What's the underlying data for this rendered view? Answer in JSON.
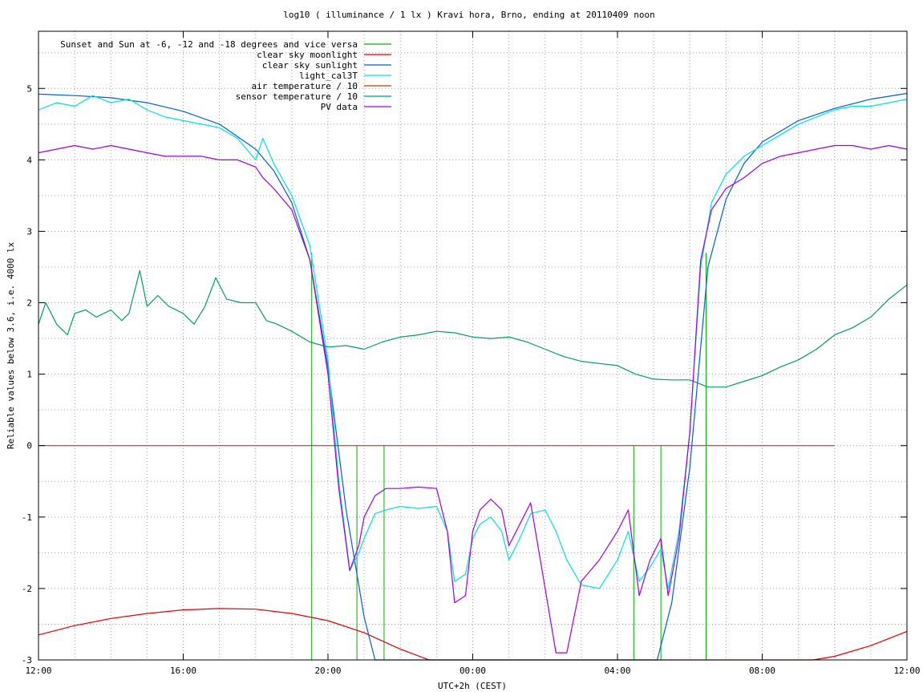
{
  "chart_data": {
    "type": "line",
    "title": "log10 ( illuminance / 1 lx ) Kravi hora, Brno, ending at 20110409 noon",
    "xlabel": "UTC+2h (CEST)",
    "ylabel": "Reliable values below 3.6, i.e. 4000 lx",
    "xlim": [
      0,
      24
    ],
    "ylim": [
      -3,
      5.8
    ],
    "x_ticks": [
      {
        "value": 0,
        "label": "12:00"
      },
      {
        "value": 4,
        "label": "16:00"
      },
      {
        "value": 8,
        "label": "20:00"
      },
      {
        "value": 12,
        "label": "00:00"
      },
      {
        "value": 16,
        "label": "04:00"
      },
      {
        "value": 20,
        "label": "08:00"
      },
      {
        "value": 24,
        "label": "12:00"
      }
    ],
    "y_ticks": [
      {
        "value": -3,
        "label": "-3"
      },
      {
        "value": -2,
        "label": "-2"
      },
      {
        "value": -1,
        "label": "-1"
      },
      {
        "value": 0,
        "label": "0"
      },
      {
        "value": 1,
        "label": "1"
      },
      {
        "value": 2,
        "label": "2"
      },
      {
        "value": 3,
        "label": "3"
      },
      {
        "value": 4,
        "label": "4"
      },
      {
        "value": 5,
        "label": "5"
      }
    ],
    "grid": true,
    "legend_position": "top-left",
    "series": [
      {
        "name": "Sunset and Sun at -6, -12 and -18 degrees and vice versa",
        "color": "#00b000",
        "style": "vlines",
        "x": [
          7.55,
          8.8,
          9.55,
          16.45,
          17.2,
          18.45
        ],
        "y_top": [
          2.7,
          0,
          0,
          0,
          0,
          2.7
        ]
      },
      {
        "name": "clear sky moonlight",
        "color": "#e00000",
        "x": [
          0,
          1,
          2,
          3,
          4,
          5,
          6,
          7,
          8,
          9,
          10,
          10.8,
          21.4,
          22,
          23,
          24
        ],
        "y": [
          -2.65,
          -2.52,
          -2.42,
          -2.35,
          -2.3,
          -2.28,
          -2.29,
          -2.35,
          -2.45,
          -2.62,
          -2.85,
          -3.0,
          -3.0,
          -2.95,
          -2.8,
          -2.6
        ]
      },
      {
        "name": "clear sky sunlight",
        "color": "#0060d0",
        "x": [
          0,
          1,
          2,
          3,
          4,
          5,
          6,
          6.5,
          7,
          7.5,
          8,
          8.5,
          9,
          9.3,
          17.1,
          17.5,
          18,
          18.5,
          19,
          19.5,
          20,
          21,
          22,
          23,
          24
        ],
        "y": [
          4.92,
          4.9,
          4.87,
          4.8,
          4.68,
          4.5,
          4.15,
          3.85,
          3.4,
          2.6,
          1.1,
          -0.9,
          -2.4,
          -3.0,
          -3.0,
          -2.2,
          -0.3,
          2.5,
          3.45,
          3.95,
          4.25,
          4.55,
          4.72,
          4.85,
          4.93
        ]
      },
      {
        "name": "light_cal3T",
        "color": "#00e0e0",
        "x": [
          0,
          0.5,
          1,
          1.5,
          2,
          2.5,
          3,
          3.5,
          4,
          4.5,
          5,
          5.5,
          6,
          6.2,
          6.5,
          7,
          7.5,
          8,
          8.3,
          8.6,
          8.85,
          9,
          9.3,
          9.6,
          10,
          10.5,
          11,
          11.3,
          11.5,
          11.8,
          12,
          12.2,
          12.5,
          12.8,
          13,
          13.3,
          13.6,
          14,
          14.3,
          14.6,
          15,
          15.5,
          16,
          16.3,
          16.6,
          16.9,
          17.2,
          17.4,
          17.7,
          18,
          18.3,
          18.6,
          19,
          19.5,
          20,
          20.5,
          21,
          21.5,
          22,
          22.5,
          23,
          23.5,
          24
        ],
        "y": [
          4.7,
          4.8,
          4.75,
          4.9,
          4.8,
          4.85,
          4.7,
          4.6,
          4.55,
          4.5,
          4.45,
          4.3,
          4.0,
          4.3,
          3.95,
          3.5,
          2.8,
          1.2,
          -0.5,
          -1.75,
          -1.5,
          -1.3,
          -0.95,
          -0.9,
          -0.85,
          -0.88,
          -0.85,
          -1.2,
          -1.9,
          -1.8,
          -1.3,
          -1.1,
          -1.0,
          -1.2,
          -1.6,
          -1.3,
          -0.95,
          -0.9,
          -1.2,
          -1.6,
          -1.95,
          -2.0,
          -1.6,
          -1.2,
          -1.9,
          -1.7,
          -1.45,
          -2.0,
          -1.2,
          0.2,
          2.5,
          3.4,
          3.8,
          4.05,
          4.2,
          4.35,
          4.5,
          4.6,
          4.7,
          4.75,
          4.75,
          4.8,
          4.85
        ]
      },
      {
        "name": "air temperature / 10",
        "color": "#c04000",
        "x": [
          0,
          22
        ],
        "y": [
          0,
          0
        ]
      },
      {
        "name": "sensor temperature / 10",
        "color": "#00a060",
        "x": [
          0,
          0.2,
          0.5,
          0.8,
          1,
          1.3,
          1.6,
          2,
          2.3,
          2.5,
          2.8,
          3,
          3.3,
          3.6,
          4,
          4.3,
          4.6,
          4.9,
          5.2,
          5.6,
          6,
          6.3,
          6.6,
          7,
          7.5,
          8,
          8.5,
          9,
          9.5,
          10,
          10.5,
          11,
          11.5,
          12,
          12.5,
          13,
          13.5,
          14,
          14.5,
          15,
          15.5,
          16,
          16.5,
          17,
          17.5,
          18,
          18.5,
          19,
          19.5,
          20,
          20.5,
          21,
          21.5,
          22,
          22.5,
          23,
          23.5,
          24
        ],
        "y": [
          1.7,
          2.0,
          1.7,
          1.55,
          1.85,
          1.9,
          1.8,
          1.9,
          1.75,
          1.85,
          2.45,
          1.95,
          2.1,
          1.95,
          1.85,
          1.7,
          1.95,
          2.35,
          2.05,
          2.0,
          2.0,
          1.75,
          1.7,
          1.6,
          1.45,
          1.38,
          1.4,
          1.35,
          1.45,
          1.52,
          1.55,
          1.6,
          1.58,
          1.52,
          1.5,
          1.52,
          1.45,
          1.35,
          1.25,
          1.18,
          1.15,
          1.12,
          1.0,
          0.93,
          0.92,
          0.92,
          0.82,
          0.82,
          0.9,
          0.98,
          1.1,
          1.2,
          1.35,
          1.55,
          1.65,
          1.8,
          2.05,
          2.25
        ]
      },
      {
        "name": "PV data",
        "color": "#a000e0",
        "x": [
          0,
          0.5,
          1,
          1.5,
          2,
          2.5,
          3,
          3.5,
          4,
          4.5,
          5,
          5.5,
          6,
          6.2,
          6.5,
          7,
          7.5,
          8,
          8.3,
          8.6,
          8.85,
          9,
          9.3,
          9.6,
          10,
          10.5,
          11,
          11.3,
          11.5,
          11.8,
          12,
          12.2,
          12.5,
          12.8,
          13,
          13.3,
          13.6,
          14,
          14.3,
          14.6,
          15,
          15.5,
          16,
          16.3,
          16.6,
          16.9,
          17.2,
          17.4,
          17.7,
          18,
          18.3,
          18.6,
          19,
          19.5,
          20,
          20.5,
          21,
          21.5,
          22,
          22.5,
          23,
          23.5,
          24
        ],
        "y": [
          4.1,
          4.15,
          4.2,
          4.15,
          4.2,
          4.15,
          4.1,
          4.05,
          4.05,
          4.05,
          4.0,
          4.0,
          3.9,
          3.75,
          3.6,
          3.3,
          2.6,
          1.0,
          -0.6,
          -1.75,
          -1.4,
          -1.0,
          -0.7,
          -0.6,
          -0.6,
          -0.58,
          -0.6,
          -1.2,
          -2.2,
          -2.1,
          -1.2,
          -0.9,
          -0.75,
          -0.9,
          -1.4,
          -1.1,
          -0.8,
          -2.0,
          -2.9,
          -2.9,
          -1.9,
          -1.6,
          -1.2,
          -0.9,
          -2.1,
          -1.6,
          -1.3,
          -2.1,
          -1.3,
          0.2,
          2.6,
          3.3,
          3.6,
          3.75,
          3.95,
          4.05,
          4.1,
          4.15,
          4.2,
          4.2,
          4.15,
          4.2,
          4.15
        ]
      }
    ]
  }
}
